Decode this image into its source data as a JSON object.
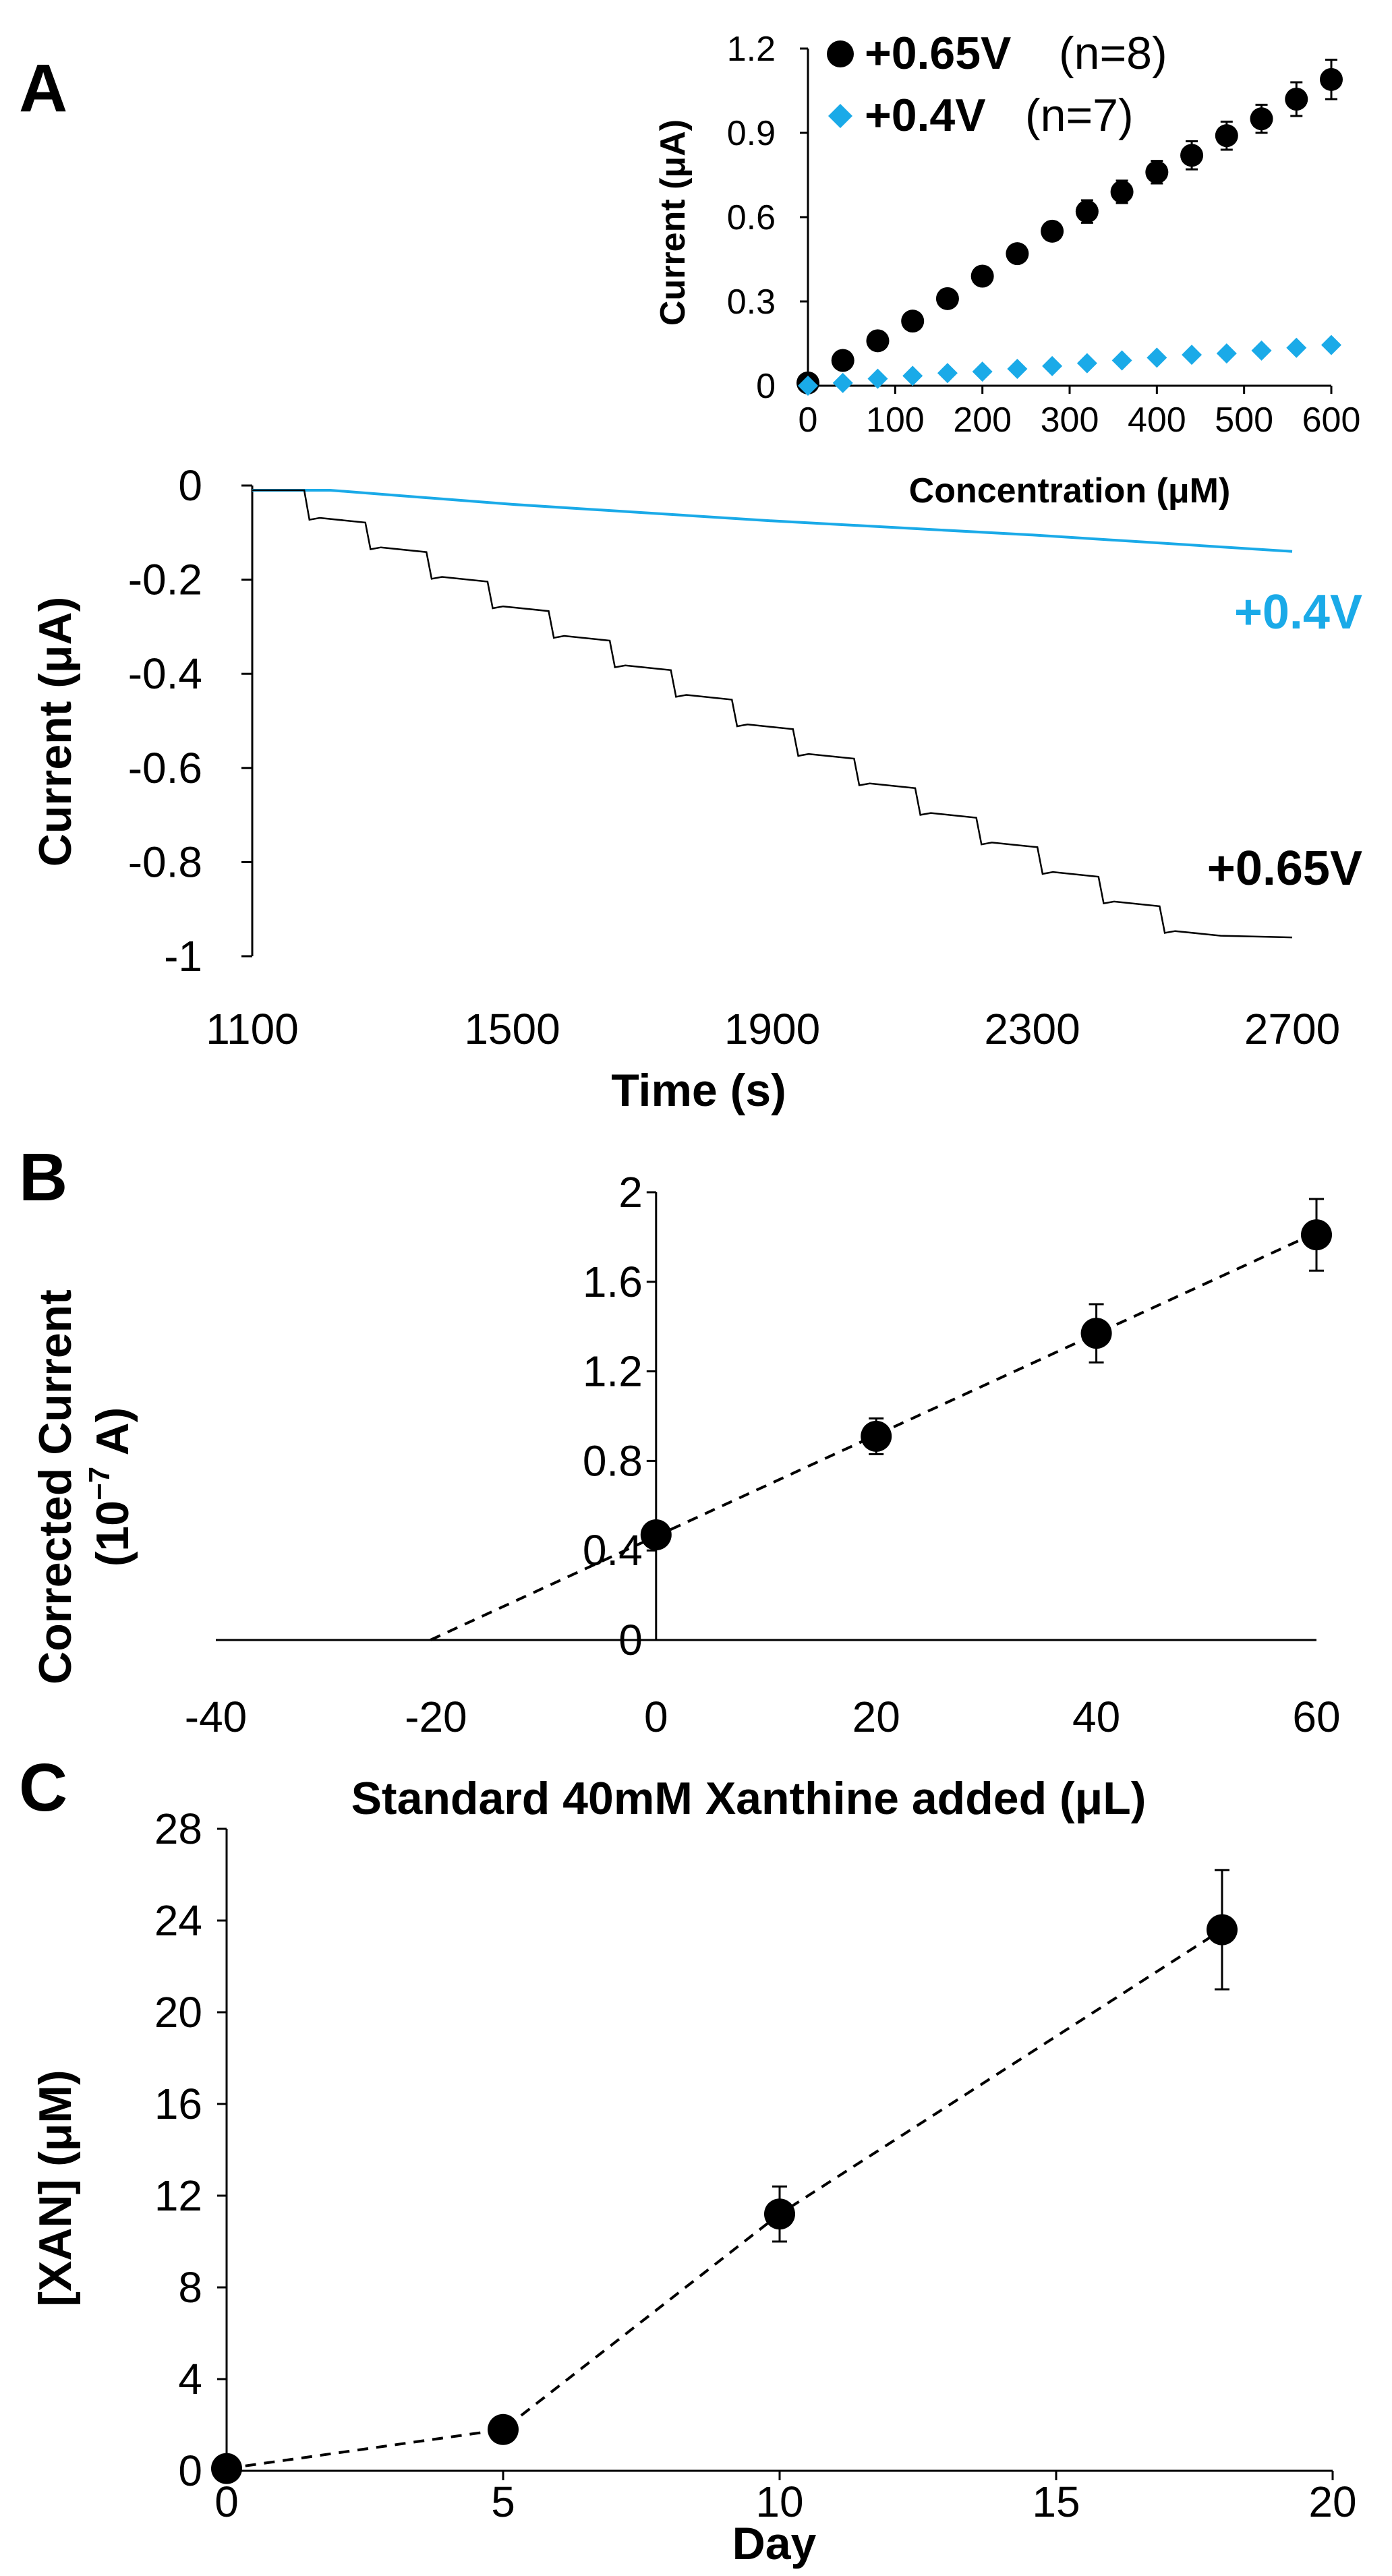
{
  "colors": {
    "black_series": "#000000",
    "blue_series": "#1aaae8",
    "axis": "#000000"
  },
  "panels": {
    "A": {
      "letter": "A"
    },
    "B": {
      "letter": "B"
    },
    "C": {
      "letter": "C"
    }
  },
  "chart_data": [
    {
      "id": "A-main",
      "type": "line",
      "xlabel": "Time (s)",
      "ylabel": "Current (μA)",
      "xlim": [
        1100,
        2700
      ],
      "ylim": [
        -1,
        0
      ],
      "xticks": [
        "1100",
        "1500",
        "1900",
        "2300",
        "2700"
      ],
      "yticks": [
        "0",
        "-0.2",
        "-0.4",
        "-0.6",
        "-0.8",
        "-1"
      ],
      "grid": false,
      "series": [
        {
          "name": "+0.4V",
          "color": "#1aaae8",
          "x": [
            1100,
            1220,
            1500,
            1900,
            2300,
            2700
          ],
          "y": [
            -0.01,
            -0.01,
            -0.04,
            -0.075,
            -0.105,
            -0.14
          ]
        },
        {
          "name": "+0.65V",
          "color": "#000000",
          "step_start": 1180,
          "step_interval": 94,
          "step_count": 15,
          "step_size": 0.0627,
          "x": [
            1100,
            1180,
            2700
          ],
          "y": [
            -0.01,
            -0.01,
            -0.96
          ]
        }
      ]
    },
    {
      "id": "A-inset",
      "type": "scatter",
      "xlabel": "Concentration (μM)",
      "ylabel": "Current (μA)",
      "xlim": [
        0,
        600
      ],
      "ylim": [
        0,
        1.2
      ],
      "xticks": [
        "0",
        "100",
        "200",
        "300",
        "400",
        "500",
        "600"
      ],
      "yticks": [
        "0",
        "0.3",
        "0.6",
        "0.9",
        "1.2"
      ],
      "legend_position": "top-left",
      "series": [
        {
          "name": "+0.65V",
          "note": "(n=8)",
          "marker": "circle",
          "color": "#000000",
          "x": [
            0,
            40,
            80,
            120,
            160,
            200,
            240,
            280,
            320,
            360,
            400,
            440,
            480,
            520,
            560,
            600
          ],
          "y": [
            0.01,
            0.09,
            0.16,
            0.23,
            0.31,
            0.39,
            0.47,
            0.55,
            0.62,
            0.69,
            0.76,
            0.82,
            0.89,
            0.95,
            1.02,
            1.09
          ],
          "err": [
            0,
            0.01,
            0.01,
            0.01,
            0.02,
            0.02,
            0.03,
            0.03,
            0.04,
            0.04,
            0.04,
            0.05,
            0.05,
            0.05,
            0.06,
            0.07
          ]
        },
        {
          "name": "+0.4V",
          "note": "(n=7)",
          "marker": "diamond",
          "color": "#1aaae8",
          "x": [
            0,
            40,
            80,
            120,
            160,
            200,
            240,
            280,
            320,
            360,
            400,
            440,
            480,
            520,
            560,
            600
          ],
          "y": [
            0.0,
            0.01,
            0.025,
            0.035,
            0.045,
            0.05,
            0.06,
            0.07,
            0.08,
            0.09,
            0.1,
            0.11,
            0.115,
            0.125,
            0.135,
            0.145
          ],
          "err": [
            0,
            0,
            0,
            0,
            0,
            0,
            0,
            0,
            0,
            0,
            0,
            0,
            0,
            0,
            0,
            0
          ]
        }
      ]
    },
    {
      "id": "B",
      "type": "scatter",
      "xlabel": "Standard 40mM Xanthine added (μL)",
      "ylabel_line1": "Corrected Current",
      "ylabel_line2_base": "(10",
      "ylabel_line2_sup": "−7",
      "ylabel_line2_end": " A)",
      "xlim": [
        -40,
        60
      ],
      "ylim": [
        0,
        2
      ],
      "xticks": [
        "-40",
        "-20",
        "0",
        "20",
        "40",
        "60"
      ],
      "yticks": [
        "0",
        "0.4",
        "0.8",
        "1.2",
        "1.6",
        "2"
      ],
      "series": [
        {
          "marker": "circle",
          "color": "#000000",
          "x": [
            0,
            20,
            40,
            60
          ],
          "y": [
            0.47,
            0.91,
            1.37,
            1.81
          ],
          "err": [
            0.05,
            0.08,
            0.13,
            0.16
          ]
        }
      ],
      "trendline": {
        "style": "dashed",
        "x": [
          -20.5,
          60
        ],
        "y": [
          0,
          1.82
        ]
      }
    },
    {
      "id": "C",
      "type": "line",
      "xlabel": "Day",
      "ylabel": "[XAN] (μM)",
      "xlim": [
        0,
        20
      ],
      "ylim": [
        0,
        28
      ],
      "xticks": [
        "0",
        "5",
        "10",
        "15",
        "20"
      ],
      "yticks": [
        "0",
        "4",
        "8",
        "12",
        "16",
        "20",
        "24",
        "28"
      ],
      "series": [
        {
          "marker": "circle",
          "line_style": "dashed",
          "color": "#000000",
          "x": [
            0,
            5,
            10,
            18
          ],
          "y": [
            0.1,
            1.8,
            11.2,
            23.6
          ],
          "err": [
            0,
            0.3,
            1.2,
            2.6
          ]
        }
      ]
    }
  ]
}
